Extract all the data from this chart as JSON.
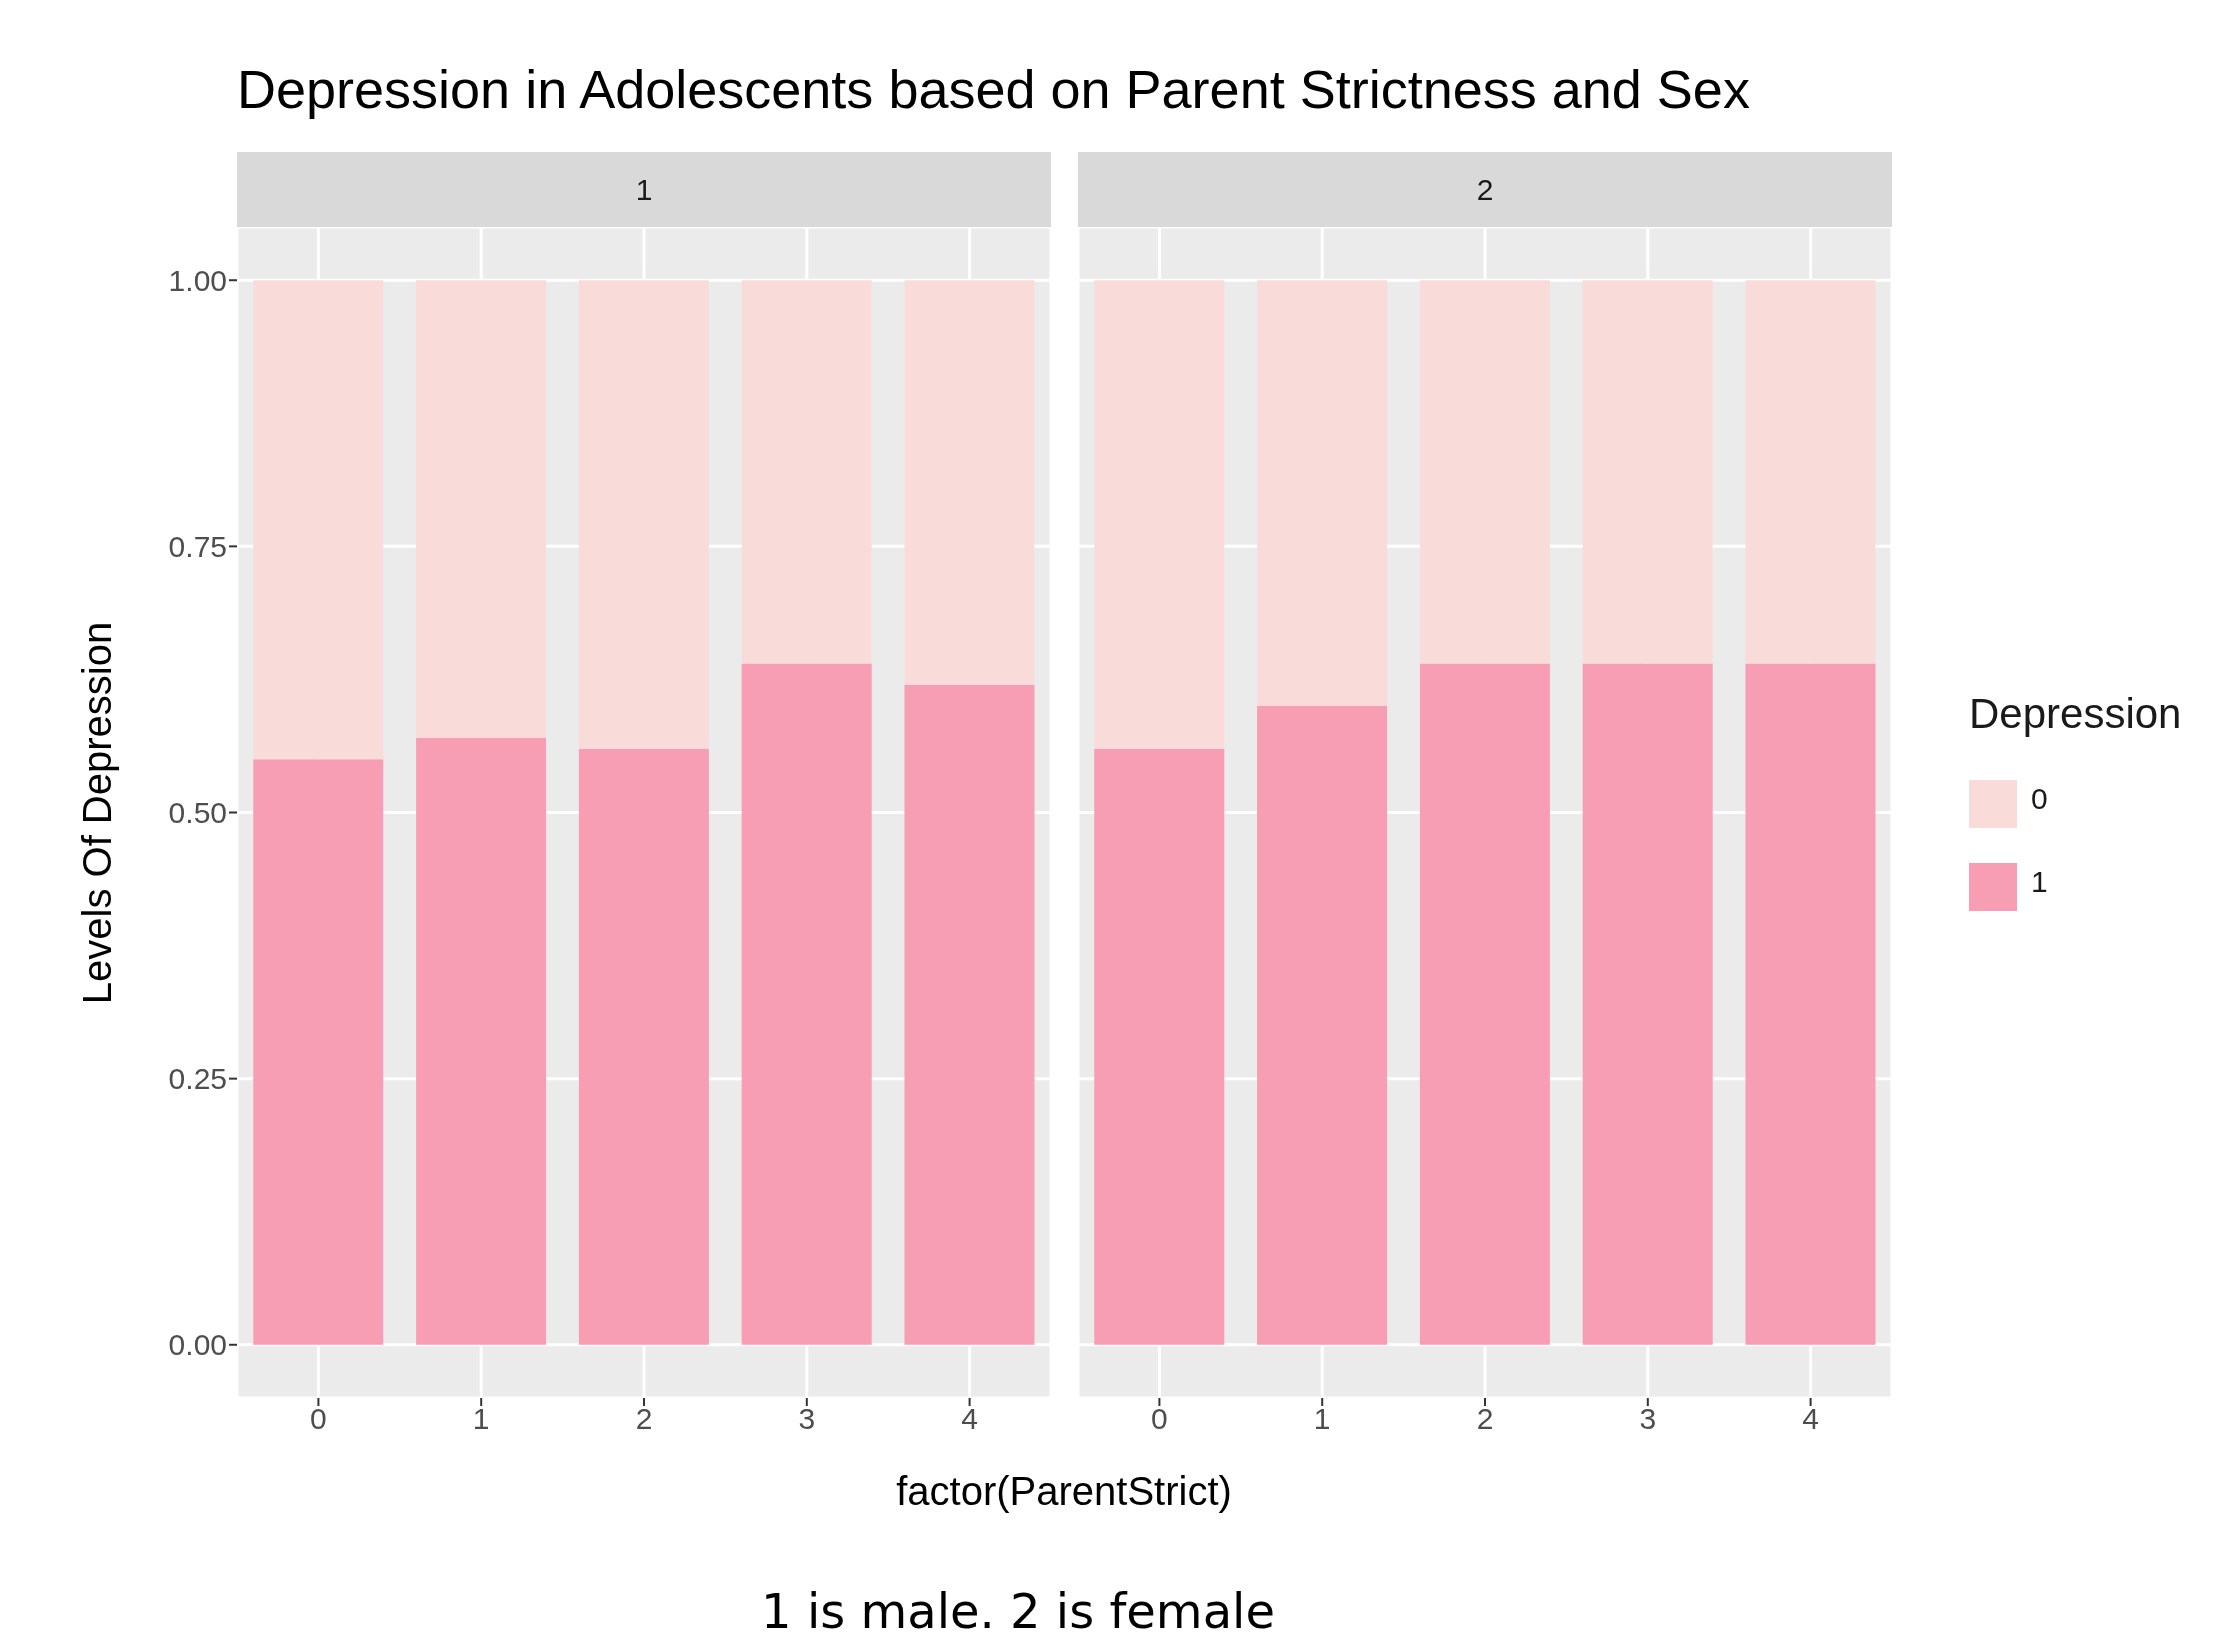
{
  "chart_data": [
    {
      "type": "bar",
      "title": "Depression in Adolescents based on Parent Strictness and Sex",
      "subtitle": "1",
      "xlabel": "factor(ParentStrict)",
      "ylabel": "Levels Of Depression",
      "annotations": [
        "1 is male. 2 is female"
      ],
      "categories": [
        "0",
        "1",
        "2",
        "3",
        "4"
      ],
      "stacked": true,
      "series": [
        {
          "color": "#f79db4",
          "values": [
            0.55,
            0.57,
            0.56,
            0.64,
            0.62
          ]
        },
        {
          "color": "#f9dcd9",
          "values": [
            0.45,
            0.43,
            0.44,
            0.36,
            0.38
          ]
        }
      ],
      "ylim": [
        -0.05,
        1.05
      ],
      "yticks": [
        {
          "value": 0,
          "label": "0.00"
        },
        {
          "value": 0.25,
          "label": "0.25"
        },
        {
          "value": 0.5,
          "label": "0.50"
        },
        {
          "value": 0.75,
          "label": "0.75"
        },
        {
          "value": 1,
          "label": "1.00"
        }
      ],
      "grid": true
    },
    {
      "type": "bar",
      "subtitle": "2",
      "legend_title": "Depression",
      "legend": "right",
      "categories": [
        "0",
        "1",
        "2",
        "3",
        "4"
      ],
      "stacked": true,
      "series": [
        {
          "name": "1",
          "color": "#f79db4",
          "values": [
            0.56,
            0.6,
            0.64,
            0.64,
            0.64
          ]
        },
        {
          "name": "0",
          "color": "#f9dcd9",
          "values": [
            0.44,
            0.4,
            0.36,
            0.36,
            0.36
          ]
        }
      ],
      "ylim": [
        -0.05,
        1.05
      ],
      "yticks": [
        0,
        0.25,
        0.5,
        0.75,
        1
      ],
      "grid": true,
      "tick_labels": "x"
    }
  ]
}
